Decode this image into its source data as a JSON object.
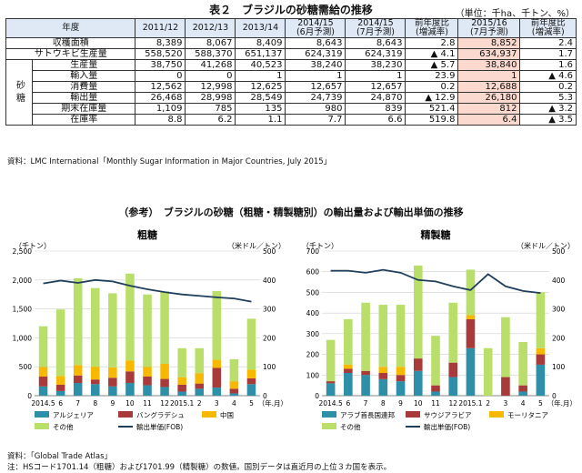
{
  "table": {
    "title": "表２　ブラジルの砂糖需給の推移",
    "unit": "（単位：千ha、千トン、%）",
    "header": {
      "year": "年度",
      "cols": [
        "2011/12",
        "2012/13",
        "2013/14",
        "2014/15\n(6月予測)",
        "2014/15\n(7月予測)",
        "前年度比\n(増減率)",
        "2015/16\n(7月予測)",
        "前年度比\n(増減率)"
      ]
    },
    "side_label": "砂糖",
    "rows": [
      {
        "label": "収穫面積",
        "values": [
          "8,389",
          "8,067",
          "8,409",
          "8,643",
          "8,643",
          "2.8",
          "8,852",
          "2.4"
        ]
      },
      {
        "label": "サトウキビ生産量",
        "values": [
          "558,520",
          "588,370",
          "651,137",
          "624,319",
          "624,319",
          "▲ 4.1",
          "634,937",
          "1.7"
        ]
      },
      {
        "label": "生産量",
        "values": [
          "38,750",
          "41,268",
          "40,523",
          "38,240",
          "38,230",
          "▲ 5.7",
          "38,840",
          "1.6"
        ]
      },
      {
        "label": "輸入量",
        "values": [
          "0",
          "0",
          "1",
          "1",
          "1",
          "23.9",
          "1",
          "▲ 4.6"
        ]
      },
      {
        "label": "消費量",
        "values": [
          "12,562",
          "12,998",
          "12,625",
          "12,657",
          "12,657",
          "0.2",
          "12,688",
          "0.2"
        ]
      },
      {
        "label": "輸出量",
        "values": [
          "26,468",
          "28,998",
          "28,549",
          "24,739",
          "24,870",
          "▲ 12.9",
          "26,180",
          "5.3"
        ]
      },
      {
        "label": "期末在庫量",
        "values": [
          "1,109",
          "785",
          "135",
          "980",
          "839",
          "521.4",
          "812",
          "▲ 3.2"
        ]
      },
      {
        "label": "在庫率",
        "values": [
          "8.8",
          "6.2",
          "1.1",
          "7.7",
          "6.6",
          "519.8",
          "6.4",
          "▲ 3.5"
        ]
      }
    ],
    "source": "資料：LMC International「Monthly Sugar Information in Major Countries, July 2015」"
  },
  "section_title": "（参考）　ブラジルの砂糖（粗糖・精製糖別）の輸出量および輸出単価の推移",
  "colors": {
    "header_bg": "#dfe9f5",
    "highlight": "#fbd9cf",
    "teal": "#2e8fa8",
    "maroon": "#a83a3a",
    "orange": "#f7b800",
    "green": "#b9df6a",
    "line": "#1f3f5c"
  },
  "chart_data": [
    {
      "type": "bar",
      "stacked": true,
      "title": "粗糖",
      "ylabel_left": "（千トン）",
      "ylabel_right": "（米ドル／トン）",
      "xlabel": "（年.月）",
      "ylim": [
        0,
        2500
      ],
      "y2lim": [
        0,
        500
      ],
      "yticks": [
        "0",
        "500",
        "1,000",
        "1,500",
        "2,000",
        "2,500"
      ],
      "y2ticks": [
        "0",
        "100",
        "200",
        "300",
        "400",
        "500"
      ],
      "categories": [
        "2014.5",
        "6",
        "7",
        "8",
        "9",
        "10",
        "11",
        "12",
        "2015.1",
        "2",
        "3",
        "4",
        "5"
      ],
      "series": [
        {
          "name": "アルジェリア",
          "values": [
            160,
            80,
            220,
            200,
            160,
            220,
            180,
            150,
            70,
            120,
            140,
            40,
            200
          ]
        },
        {
          "name": "バングラデシュ",
          "values": [
            170,
            110,
            130,
            80,
            150,
            200,
            150,
            140,
            120,
            90,
            340,
            80,
            100
          ]
        },
        {
          "name": "中国",
          "values": [
            170,
            150,
            180,
            220,
            180,
            190,
            170,
            260,
            130,
            180,
            140,
            130,
            150
          ]
        },
        {
          "name": "その他",
          "values": [
            700,
            1150,
            1500,
            1360,
            1280,
            1500,
            1250,
            1250,
            500,
            430,
            1190,
            380,
            880
          ]
        }
      ],
      "line": {
        "name": "輸出単価(FOB)",
        "values": [
          388,
          398,
          390,
          400,
          395,
          380,
          368,
          358,
          350,
          345,
          340,
          336,
          325
        ]
      }
    },
    {
      "type": "bar",
      "stacked": true,
      "title": "精製糖",
      "ylabel_left": "（千トン）",
      "ylabel_right": "（米ドル／トン）",
      "xlabel": "（年.月）",
      "ylim": [
        0,
        700
      ],
      "y2lim": [
        0,
        500
      ],
      "yticks": [
        "0",
        "100",
        "200",
        "300",
        "400",
        "500",
        "600",
        "700"
      ],
      "y2ticks": [
        "0",
        "100",
        "200",
        "300",
        "400",
        "500"
      ],
      "categories": [
        "2014.5",
        "6",
        "7",
        "8",
        "9",
        "10",
        "11",
        "12",
        "2015.1",
        "2",
        "3",
        "4",
        "5"
      ],
      "series": [
        {
          "name": "アラブ首長国連邦",
          "values": [
            60,
            110,
            100,
            80,
            70,
            120,
            20,
            90,
            230,
            0,
            0,
            20,
            150
          ]
        },
        {
          "name": "サウジアラビア",
          "values": [
            10,
            20,
            20,
            30,
            30,
            60,
            30,
            70,
            140,
            0,
            90,
            30,
            50
          ]
        },
        {
          "name": "モーリタニア",
          "values": [
            0,
            20,
            0,
            30,
            40,
            0,
            0,
            0,
            20,
            0,
            0,
            0,
            30
          ]
        },
        {
          "name": "その他",
          "values": [
            200,
            220,
            330,
            300,
            300,
            450,
            240,
            290,
            220,
            230,
            290,
            210,
            270
          ]
        }
      ],
      "line": {
        "name": "輸出単価(FOB)",
        "values": [
          432,
          432,
          425,
          435,
          425,
          400,
          395,
          378,
          365,
          420,
          378,
          362,
          355
        ]
      }
    }
  ],
  "footer": {
    "source": "資料：「Global Trade Atlas」",
    "note": "注：HSコード1701.14（粗糖）および1701.99（精製糖）の数値。国別データは直近月の上位３カ国を表示。"
  }
}
